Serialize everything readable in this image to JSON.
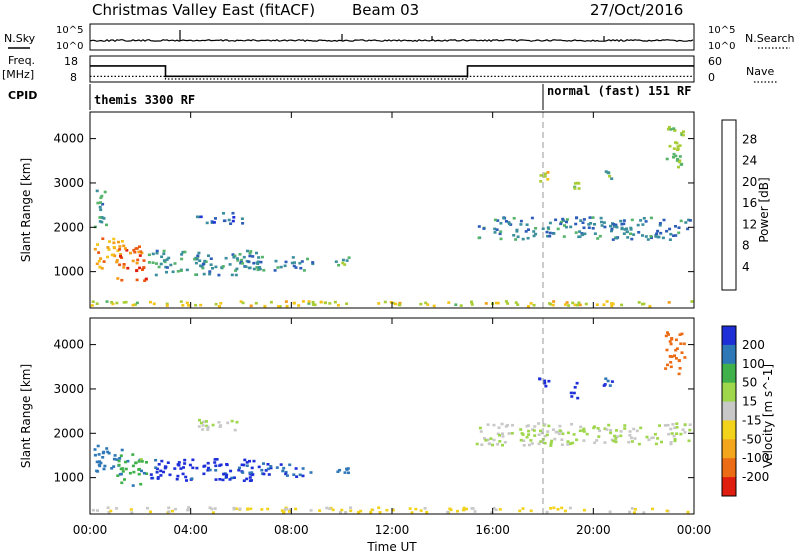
{
  "header": {
    "title": "Christmas Valley East (fitACF)",
    "beam": "Beam 03",
    "date": "27/Oct/2016"
  },
  "status_panels": {
    "nsky_label": "N.Sky",
    "nsky_ticks": [
      "10^5",
      "10^0"
    ],
    "nsearch_label": "N.Search",
    "nsearch_ticks": [
      "10^5",
      "10^0"
    ],
    "freq_label": "Freq.",
    "freq_unit": "[MHz]",
    "freq_ticks": [
      "18",
      "8"
    ],
    "nave_label": "Nave",
    "nave_ticks": [
      "60",
      "0"
    ],
    "cpid_label": "CPID",
    "cpid_segments": [
      {
        "name": "themis 3300 RF",
        "start_h": 0,
        "end_h": 18
      },
      {
        "name": "normal (fast) 151 RF",
        "start_h": 18,
        "end_h": 24
      }
    ],
    "freq_mhz": [
      [
        0,
        14.2
      ],
      [
        3,
        14.2
      ],
      [
        3,
        10.2
      ],
      [
        15,
        10.2
      ],
      [
        15,
        14.2
      ],
      [
        24,
        14.2
      ]
    ],
    "nave": [
      [
        0,
        13
      ],
      [
        3,
        13
      ],
      [
        3,
        7
      ],
      [
        15,
        7
      ],
      [
        15,
        13
      ],
      [
        24,
        13
      ]
    ]
  },
  "chart_data": [
    {
      "type": "heatmap",
      "name": "power",
      "ylabel": "Slant Range [km]",
      "yticks": [
        1000,
        2000,
        3000,
        4000
      ],
      "xlim": [
        0,
        24
      ],
      "ylim": [
        180,
        4600
      ],
      "colorbar": {
        "label": "Power [dB]",
        "ticks": [
          4,
          8,
          12,
          16,
          20,
          24,
          28
        ],
        "colors": [
          "#1e2fd8",
          "#2e5db8",
          "#3b8f9c",
          "#55b36a",
          "#a8cc35",
          "#f4c419",
          "#f39c16",
          "#ec5a12",
          "#e01e10"
        ]
      },
      "patches": [
        {
          "x": [
            0.1,
            1.3
          ],
          "y": [
            1100,
            1780
          ],
          "v": 22
        },
        {
          "x": [
            1.0,
            2.2
          ],
          "y": [
            800,
            1600
          ],
          "v": 27
        },
        {
          "x": [
            0.0,
            24.0
          ],
          "y": [
            240,
            360
          ],
          "v": 18
        },
        {
          "x": [
            0.1,
            0.6
          ],
          "y": [
            2000,
            2900
          ],
          "v": 10
        },
        {
          "x": [
            2.3,
            6.8
          ],
          "y": [
            950,
            1500
          ],
          "v": 10
        },
        {
          "x": [
            6.0,
            8.8
          ],
          "y": [
            1050,
            1350
          ],
          "v": 8
        },
        {
          "x": [
            9.7,
            10.4
          ],
          "y": [
            1100,
            1350
          ],
          "v": 11
        },
        {
          "x": [
            4.2,
            6.1
          ],
          "y": [
            2100,
            2350
          ],
          "v": 6
        },
        {
          "x": [
            15.3,
            23.8
          ],
          "y": [
            1750,
            2250
          ],
          "v": 8
        },
        {
          "x": [
            17.8,
            18.2
          ],
          "y": [
            3050,
            3300
          ],
          "v": 19
        },
        {
          "x": [
            19.0,
            19.4
          ],
          "y": [
            2800,
            3200
          ],
          "v": 13
        },
        {
          "x": [
            22.8,
            23.6
          ],
          "y": [
            3300,
            4300
          ],
          "v": 15
        },
        {
          "x": [
            20.3,
            20.7
          ],
          "y": [
            3100,
            3300
          ],
          "v": 12
        }
      ]
    },
    {
      "type": "heatmap",
      "name": "velocity",
      "ylabel": "Slant Range [km]",
      "xlabel": "Time UT",
      "xticks": [
        "00:00",
        "04:00",
        "08:00",
        "12:00",
        "16:00",
        "20:00",
        "00:00"
      ],
      "yticks": [
        1000,
        2000,
        3000,
        4000
      ],
      "xlim": [
        0,
        24
      ],
      "ylim": [
        180,
        4600
      ],
      "colorbar": {
        "label": "Velocity [m s^-1]",
        "ticks": [
          200,
          100,
          50,
          15,
          -15,
          -50,
          -100,
          -200
        ],
        "colors": [
          "#1f2fd8",
          "#2f78b8",
          "#3fb04a",
          "#9ed64c",
          "#c8c8c8",
          "#f2d21b",
          "#f3a51b",
          "#ec6b15",
          "#e01e10"
        ]
      },
      "patches": [
        {
          "x": [
            0.1,
            1.3
          ],
          "y": [
            1100,
            1750
          ],
          "v": 110
        },
        {
          "x": [
            1.0,
            2.2
          ],
          "y": [
            850,
            1550
          ],
          "v": 60
        },
        {
          "x": [
            0.0,
            24.0
          ],
          "y": [
            240,
            360
          ],
          "v": -40
        },
        {
          "x": [
            2.3,
            6.8
          ],
          "y": [
            950,
            1450
          ],
          "v": 180
        },
        {
          "x": [
            6.0,
            8.8
          ],
          "y": [
            1050,
            1350
          ],
          "v": 150
        },
        {
          "x": [
            9.7,
            10.4
          ],
          "y": [
            1100,
            1350
          ],
          "v": 120
        },
        {
          "x": [
            4.2,
            6.1
          ],
          "y": [
            2100,
            2350
          ],
          "v": 0
        },
        {
          "x": [
            15.3,
            23.8
          ],
          "y": [
            1750,
            2250
          ],
          "v": 0
        },
        {
          "x": [
            17.8,
            18.2
          ],
          "y": [
            3050,
            3300
          ],
          "v": 220
        },
        {
          "x": [
            19.0,
            19.4
          ],
          "y": [
            2800,
            3200
          ],
          "v": 200
        },
        {
          "x": [
            22.8,
            23.6
          ],
          "y": [
            3300,
            4300
          ],
          "v": -220
        },
        {
          "x": [
            20.3,
            20.7
          ],
          "y": [
            3100,
            3300
          ],
          "v": 180
        }
      ]
    }
  ]
}
